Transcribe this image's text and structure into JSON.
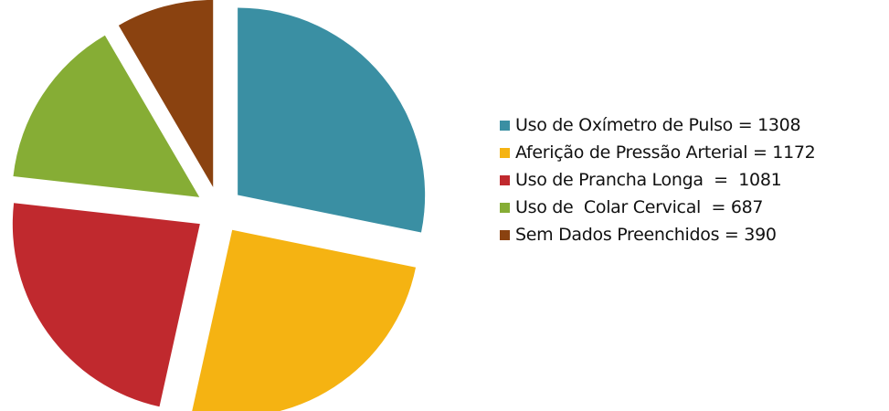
{
  "chart_data": {
    "type": "pie",
    "title": "",
    "legend_position": "right",
    "explode": true,
    "slices": [
      {
        "label": "Uso de Oxímetro de Pulso = 1308",
        "value": 1308,
        "color": "#3a8fa3"
      },
      {
        "label": "Aferição de Pressão Arterial = 1172",
        "value": 1172,
        "color": "#f5b312"
      },
      {
        "label": "Uso de Prancha Longa  =  1081",
        "value": 1081,
        "color": "#c0292e"
      },
      {
        "label": "Uso de  Colar Cervical  = 687",
        "value": 687,
        "color": "#86ad35"
      },
      {
        "label": "Sem Dados Preenchidos = 390",
        "value": 390,
        "color": "#8a4210"
      }
    ]
  }
}
